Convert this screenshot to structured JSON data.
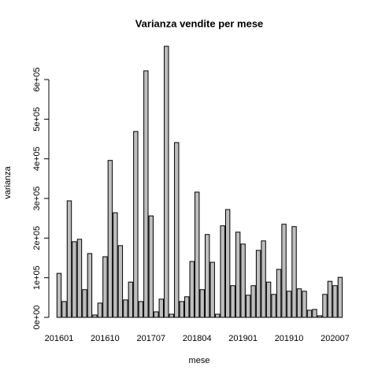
{
  "chart_data": {
    "type": "bar",
    "title": "Varianza vendite per mese",
    "x_label": "mese",
    "y_label": "varianza",
    "color": "#bebebe",
    "categories": [
      "201601",
      null,
      null,
      null,
      null,
      null,
      null,
      null,
      null,
      "201610",
      null,
      null,
      null,
      null,
      null,
      null,
      null,
      null,
      "201707",
      null,
      null,
      null,
      null,
      null,
      null,
      null,
      null,
      "201804",
      null,
      null,
      null,
      null,
      null,
      null,
      null,
      null,
      "201901",
      null,
      null,
      null,
      null,
      null,
      null,
      null,
      null,
      "201910",
      null,
      null,
      null,
      null,
      null,
      null,
      null,
      null,
      "202007",
      null
    ],
    "values": [
      111000,
      40000,
      294000,
      191000,
      197000,
      70000,
      161000,
      6000,
      36000,
      153000,
      396000,
      264000,
      181000,
      44000,
      89000,
      469000,
      40000,
      622000,
      256000,
      14000,
      46000,
      684000,
      8000,
      441000,
      40000,
      52000,
      141000,
      316000,
      70000,
      209000,
      139000,
      8000,
      231000,
      272000,
      80000,
      215000,
      185000,
      56000,
      80000,
      169000,
      193000,
      89000,
      58000,
      121000,
      235000,
      66000,
      229000,
      72000,
      66000,
      18000,
      20000,
      4000,
      58000,
      91000,
      80000,
      101000
    ],
    "ylim": [
      0,
      700000
    ],
    "yticks": [
      {
        "value": 0,
        "label": "0e+00"
      },
      {
        "value": 100000,
        "label": "1e+05"
      },
      {
        "value": 200000,
        "label": "2e+05"
      },
      {
        "value": 300000,
        "label": "3e+05"
      },
      {
        "value": 400000,
        "label": "4e+05"
      },
      {
        "value": 500000,
        "label": "5e+05"
      },
      {
        "value": 600000,
        "label": "6e+05"
      }
    ]
  }
}
